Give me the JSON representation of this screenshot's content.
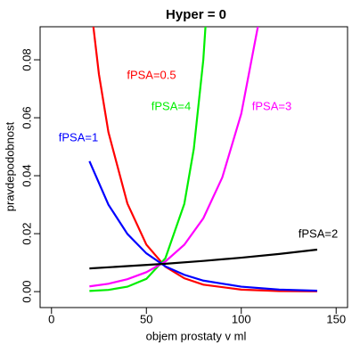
{
  "chart_data": {
    "type": "line",
    "title": "Hyper = 0",
    "x_label": "objem prostaty v ml",
    "y_label": "pravdepodobnost",
    "xlim": [
      -6,
      156
    ],
    "xticks": [
      0,
      50,
      100,
      150
    ],
    "ylim": [
      -0.0055,
      0.0914
    ],
    "yticks": [
      {
        "value": 0,
        "label": "0.00"
      },
      {
        "value": 0.02,
        "label": "0.02"
      },
      {
        "value": 0.04,
        "label": "0.04"
      },
      {
        "value": 0.06,
        "label": "0.06"
      },
      {
        "value": 0.08,
        "label": "0.08"
      }
    ],
    "series": [
      {
        "name": "fPSA=0.5",
        "color": "#ff0000",
        "x": [
          20,
          25,
          30,
          40,
          50,
          60,
          70,
          80,
          100,
          120,
          140
        ],
        "values": [
          0.103,
          0.075,
          0.055,
          0.0304,
          0.0162,
          0.0086,
          0.0046,
          0.0024,
          0.0007,
          0.0002,
          0.0001
        ]
      },
      {
        "name": "fPSA=4",
        "color": "#00ee00",
        "x": [
          20,
          30,
          40,
          50,
          60,
          70,
          75,
          80,
          85
        ],
        "values": [
          0.00024,
          0.0006,
          0.0017,
          0.0044,
          0.0115,
          0.0303,
          0.0493,
          0.08,
          0.13
        ]
      },
      {
        "name": "fPSA=3",
        "color": "#ff00ff",
        "x": [
          20,
          30,
          40,
          50,
          60,
          70,
          80,
          90,
          100,
          110
        ],
        "values": [
          0.0018,
          0.0027,
          0.0043,
          0.0067,
          0.0104,
          0.0162,
          0.0253,
          0.0394,
          0.0614,
          0.0957
        ]
      },
      {
        "name": "fPSA=1",
        "color": "#0000ff",
        "x": [
          20,
          30,
          40,
          50,
          60,
          70,
          80,
          100,
          120,
          140
        ],
        "values": [
          0.045,
          0.03,
          0.0199,
          0.0132,
          0.0087,
          0.0058,
          0.0038,
          0.0017,
          0.0007,
          0.0003
        ]
      },
      {
        "name": "fPSA=2",
        "color": "#000000",
        "x": [
          20,
          40,
          60,
          80,
          100,
          120,
          140
        ],
        "values": [
          0.008,
          0.0088,
          0.0096,
          0.0106,
          0.0117,
          0.013,
          0.0145
        ]
      }
    ]
  }
}
